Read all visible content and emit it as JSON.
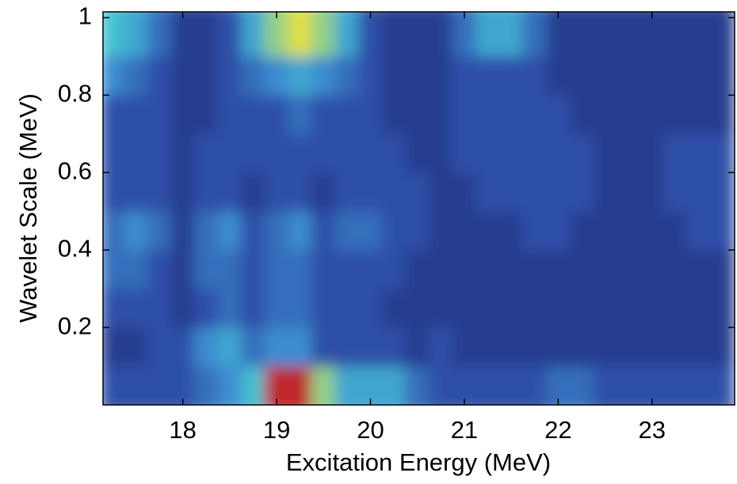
{
  "chart_data": {
    "type": "heatmap",
    "x_label": "Excitation Energy (MeV)",
    "y_label": "Wavelet Scale (MeV)",
    "xlim": [
      17.15,
      23.88
    ],
    "ylim": [
      0,
      1.015
    ],
    "xticks": [
      18,
      19,
      20,
      21,
      22,
      23
    ],
    "yticks": [
      0.2,
      0.4,
      0.6,
      0.8,
      1
    ],
    "x": [
      17.25,
      17.5,
      17.75,
      18,
      18.25,
      18.5,
      18.75,
      19,
      19.25,
      19.5,
      19.75,
      20,
      20.25,
      20.5,
      20.75,
      21,
      21.25,
      21.5,
      21.75,
      22,
      22.25,
      22.5,
      22.75,
      23,
      23.25,
      23.5,
      23.75
    ],
    "y": [
      0.05,
      0.15,
      0.25,
      0.35,
      0.45,
      0.55,
      0.65,
      0.75,
      0.85,
      0.95
    ],
    "zlim": [
      0,
      10
    ],
    "colormap": [
      "#1e2a78",
      "#2e4fa8",
      "#3c8cd0",
      "#45c0d0",
      "#e0e040",
      "#c0262b"
    ],
    "z": [
      [
        2,
        2,
        2,
        2,
        3,
        4,
        6,
        10,
        10,
        7,
        5,
        5,
        5,
        3,
        2,
        2,
        2,
        2,
        2,
        3,
        3,
        2,
        2,
        2,
        2,
        2,
        2
      ],
      [
        1,
        1,
        2,
        2,
        4,
        5,
        3,
        4,
        4,
        2,
        2,
        2,
        2,
        1,
        2,
        1,
        1,
        1,
        1,
        1,
        1,
        1,
        1,
        1,
        1,
        1,
        1
      ],
      [
        2,
        2,
        2,
        1,
        2,
        3,
        2,
        3,
        3,
        2,
        2,
        2,
        1,
        1,
        1,
        1,
        1,
        1,
        1,
        1,
        1,
        1,
        1,
        1,
        1,
        1,
        1
      ],
      [
        3,
        3,
        2,
        1,
        3,
        3,
        2,
        3,
        3,
        2,
        2,
        2,
        2,
        1,
        1,
        1,
        1,
        1,
        1,
        1,
        1,
        1,
        1,
        1,
        1,
        1,
        1
      ],
      [
        3,
        4,
        3,
        1,
        3,
        4,
        2,
        3,
        4,
        2,
        3,
        3,
        2,
        2,
        1,
        1,
        1,
        1,
        2,
        2,
        1,
        1,
        1,
        1,
        1,
        2,
        2
      ],
      [
        2,
        2,
        2,
        1,
        2,
        2,
        1,
        2,
        2,
        1,
        2,
        2,
        2,
        2,
        1,
        1,
        2,
        2,
        2,
        2,
        2,
        1,
        1,
        1,
        2,
        2,
        2
      ],
      [
        2,
        2,
        2,
        1,
        2,
        2,
        2,
        2,
        2,
        2,
        2,
        2,
        2,
        1,
        1,
        2,
        2,
        2,
        2,
        2,
        2,
        1,
        1,
        1,
        2,
        2,
        2
      ],
      [
        2,
        2,
        2,
        1,
        1,
        2,
        2,
        2,
        3,
        2,
        2,
        2,
        1,
        1,
        1,
        2,
        2,
        2,
        2,
        2,
        1,
        1,
        1,
        1,
        1,
        1,
        1
      ],
      [
        4,
        3,
        2,
        1,
        1,
        2,
        3,
        4,
        5,
        4,
        3,
        2,
        1,
        1,
        1,
        2,
        2,
        2,
        2,
        1,
        1,
        1,
        1,
        1,
        1,
        1,
        1
      ],
      [
        6,
        5,
        3,
        1,
        1,
        2,
        5,
        7,
        8,
        7,
        5,
        2,
        1,
        1,
        1,
        3,
        5,
        5,
        3,
        1,
        1,
        1,
        1,
        1,
        1,
        1,
        1
      ]
    ]
  }
}
